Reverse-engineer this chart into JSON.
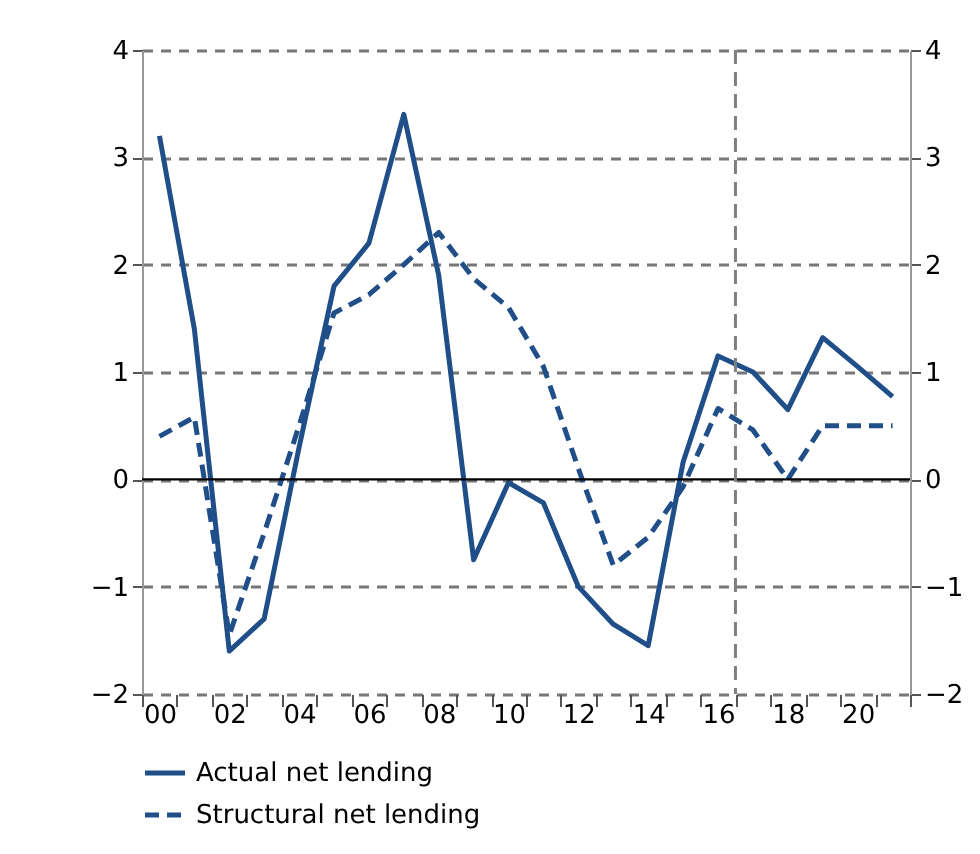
{
  "chart_data": {
    "type": "line",
    "x": [
      2000,
      2001,
      2002,
      2003,
      2004,
      2005,
      2006,
      2007,
      2008,
      2009,
      2010,
      2011,
      2012,
      2013,
      2014,
      2015,
      2016,
      2017,
      2018,
      2019,
      2020,
      2021
    ],
    "series": [
      {
        "name": "Actual net lending",
        "color": "#1f4e89",
        "line_style": "solid",
        "values": [
          3.2,
          1.4,
          -1.6,
          -1.3,
          0.3,
          1.8,
          2.2,
          3.4,
          1.9,
          -0.75,
          -0.03,
          -0.22,
          -1.0,
          -1.35,
          -1.55,
          0.16,
          1.15,
          1.0,
          0.65,
          1.32,
          1.05,
          0.77
        ]
      },
      {
        "name": "Structural net lending",
        "color": "#1f4e89",
        "line_style": "dashed",
        "values": [
          0.4,
          0.58,
          -1.45,
          -0.5,
          0.5,
          1.55,
          1.72,
          2.0,
          2.3,
          1.87,
          1.6,
          1.05,
          0.1,
          -0.8,
          -0.54,
          -0.07,
          0.66,
          0.46,
          0.0,
          0.5,
          0.5,
          0.5
        ]
      }
    ],
    "xlim": [
      1999.5,
      2021.5
    ],
    "xticks": [
      {
        "value": 2000,
        "label": "00"
      },
      {
        "value": 2002,
        "label": "02"
      },
      {
        "value": 2004,
        "label": "04"
      },
      {
        "value": 2006,
        "label": "06"
      },
      {
        "value": 2008,
        "label": "08"
      },
      {
        "value": 2010,
        "label": "10"
      },
      {
        "value": 2012,
        "label": "12"
      },
      {
        "value": 2014,
        "label": "14"
      },
      {
        "value": 2016,
        "label": "16"
      },
      {
        "value": 2018,
        "label": "18"
      },
      {
        "value": 2020,
        "label": "20"
      },
      {
        "value": 1999.5,
        "label": null
      },
      {
        "value": 2000.5,
        "label": null
      },
      {
        "value": 2001.5,
        "label": null
      },
      {
        "value": 2002.5,
        "label": null
      },
      {
        "value": 2003.5,
        "label": null
      },
      {
        "value": 2004.5,
        "label": null
      },
      {
        "value": 2005.5,
        "label": null
      },
      {
        "value": 2006.5,
        "label": null
      },
      {
        "value": 2007.5,
        "label": null
      },
      {
        "value": 2008.5,
        "label": null
      },
      {
        "value": 2009.5,
        "label": null
      },
      {
        "value": 2010.5,
        "label": null
      },
      {
        "value": 2011.5,
        "label": null
      },
      {
        "value": 2012.5,
        "label": null
      },
      {
        "value": 2013.5,
        "label": null
      },
      {
        "value": 2014.5,
        "label": null
      },
      {
        "value": 2015.5,
        "label": null
      },
      {
        "value": 2016.5,
        "label": null
      },
      {
        "value": 2017.5,
        "label": null
      },
      {
        "value": 2018.5,
        "label": null
      },
      {
        "value": 2019.5,
        "label": null
      },
      {
        "value": 2020.5,
        "label": null
      },
      {
        "value": 2021.5,
        "label": null
      }
    ],
    "ylim": [
      -2,
      4
    ],
    "yticks": [
      -2,
      -1,
      0,
      1,
      2,
      3,
      4
    ],
    "y2lim": [
      -2,
      4
    ],
    "y2ticks": [
      -2,
      -1,
      0,
      1,
      2,
      3,
      4
    ],
    "grid": "y",
    "legend": "bottom left",
    "ref_lines": [
      {
        "axis": "y",
        "value": 0,
        "label": null,
        "color": "#000000",
        "line_style": "solid"
      },
      {
        "axis": "x",
        "value": 2016.5,
        "label": null,
        "color": "#808080",
        "line_style": "dashed"
      }
    ]
  }
}
